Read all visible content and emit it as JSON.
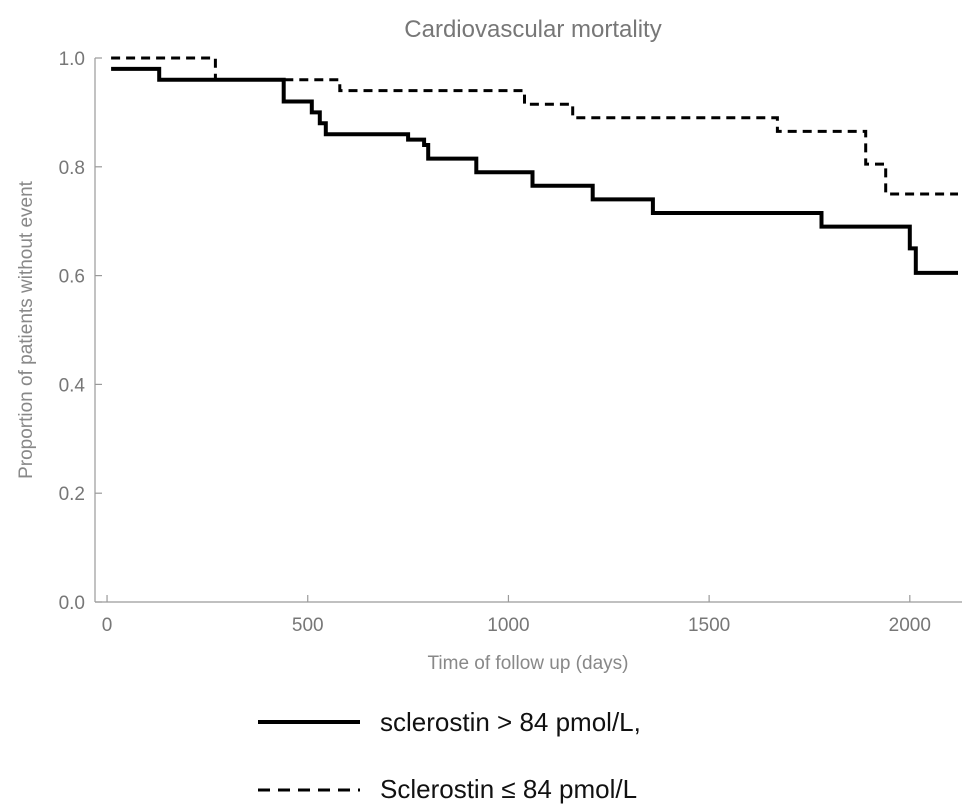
{
  "chart_data": {
    "type": "line",
    "subtype": "kaplan-meier-step",
    "title": "Cardiovascular mortality",
    "xlabel": "Time of follow up (days)",
    "ylabel": "Proportion of patients without event",
    "xlim": [
      -30,
      2130
    ],
    "ylim": [
      0,
      1.0
    ],
    "xticks": [
      0,
      500,
      1000,
      1500,
      2000
    ],
    "xtick_labels": [
      "0",
      "500",
      "1000",
      "1500",
      "2000"
    ],
    "yticks": [
      0,
      0.2,
      0.4,
      0.6,
      0.8,
      1.0
    ],
    "ytick_labels": [
      "0.0",
      "0.2",
      "0.4",
      "0.6",
      "0.8",
      "1.0"
    ],
    "grid": false,
    "legend_position": "bottom",
    "series": [
      {
        "name": "sclerostin > 84 pmol/L,",
        "style": "solid",
        "color": "#000000",
        "x": [
          10,
          130,
          440,
          510,
          530,
          545,
          750,
          790,
          800,
          920,
          1060,
          1210,
          1360,
          1780,
          2000,
          2015,
          2120
        ],
        "y": [
          0.98,
          0.96,
          0.92,
          0.9,
          0.88,
          0.86,
          0.85,
          0.84,
          0.815,
          0.79,
          0.765,
          0.74,
          0.715,
          0.69,
          0.65,
          0.605,
          0.605
        ]
      },
      {
        "name": "Sclerostin ≤ 84 pmol/L",
        "style": "dashed",
        "color": "#000000",
        "x": [
          10,
          270,
          440,
          580,
          1040,
          1160,
          1670,
          1890,
          1940,
          2120
        ],
        "y": [
          1.0,
          0.96,
          0.96,
          0.94,
          0.915,
          0.89,
          0.865,
          0.805,
          0.75,
          0.75
        ]
      }
    ]
  }
}
